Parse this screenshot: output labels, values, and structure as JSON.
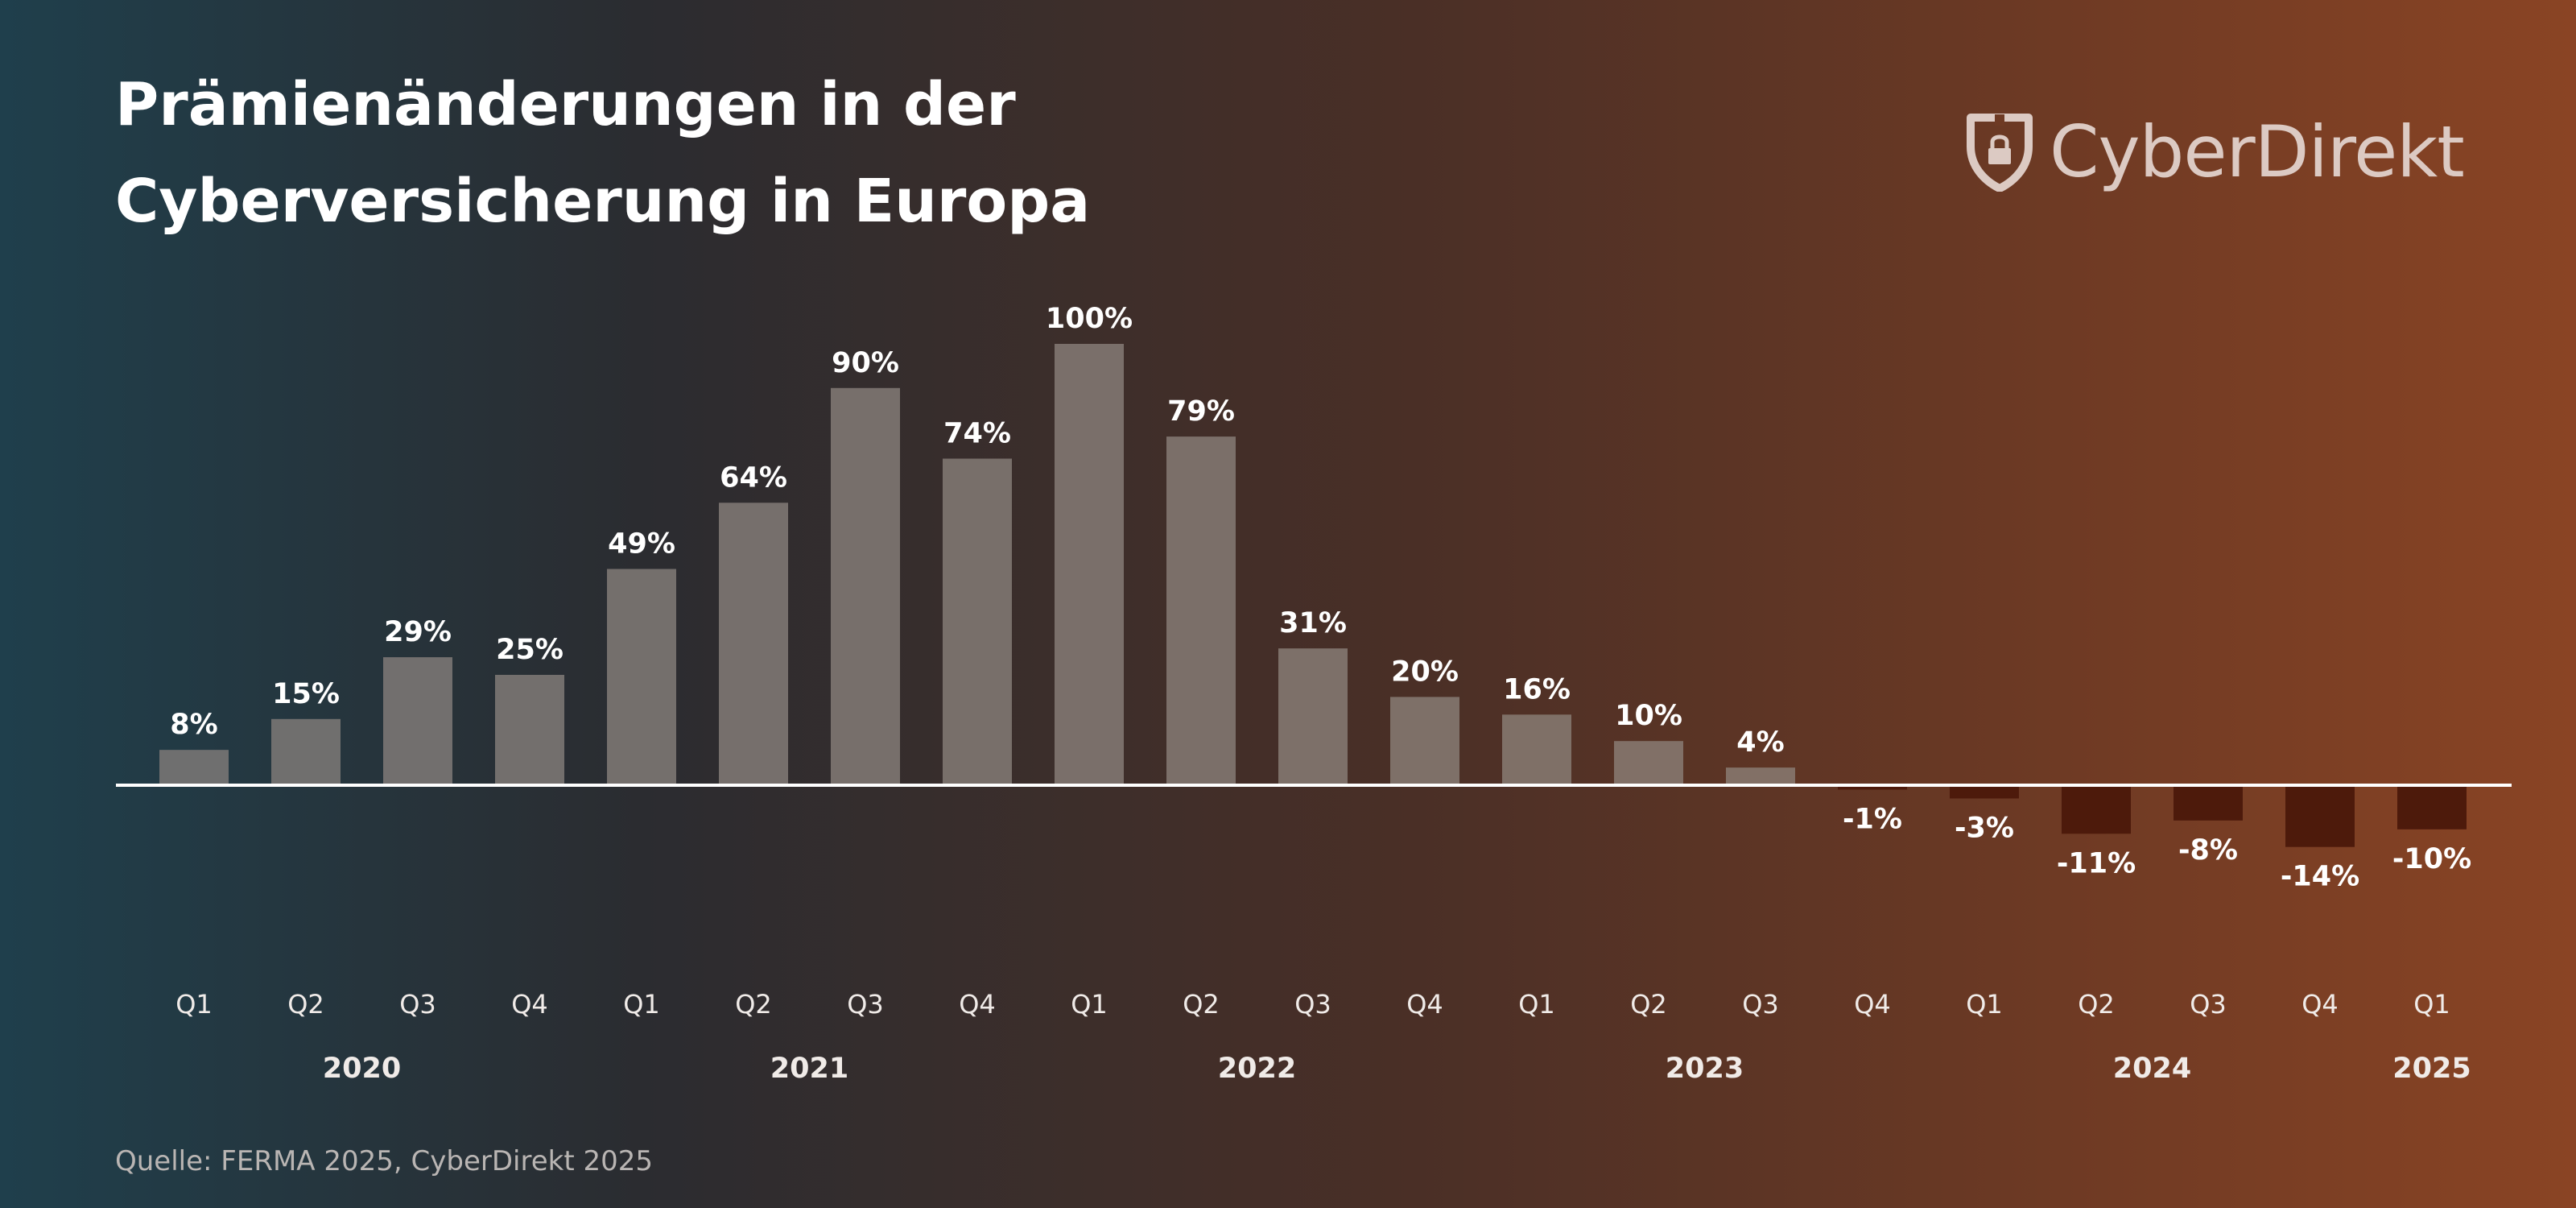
{
  "title_line1": "Prämienänderungen in der",
  "title_line2": "Cyberversicherung in Europa",
  "logo_text": "CyberDirekt",
  "source": "Quelle: FERMA 2025, CyberDirekt 2025",
  "colors": {
    "bar_positive_low": "#6f6f6f",
    "bar_positive_high": "#8a7062",
    "bar_negative": "#4d1a0b",
    "baseline": "#ffffff",
    "logo": "#dccac3"
  },
  "chart_data": {
    "type": "bar",
    "title": "Prämienänderungen in der Cyberversicherung in Europa",
    "categories": [
      "Q1",
      "Q2",
      "Q3",
      "Q4",
      "Q1",
      "Q2",
      "Q3",
      "Q4",
      "Q1",
      "Q2",
      "Q3",
      "Q4",
      "Q1",
      "Q2",
      "Q3",
      "Q4",
      "Q1",
      "Q2",
      "Q3",
      "Q4",
      "Q1"
    ],
    "years": [
      "2020",
      "2020",
      "2020",
      "2020",
      "2021",
      "2021",
      "2021",
      "2021",
      "2022",
      "2022",
      "2022",
      "2022",
      "2023",
      "2023",
      "2023",
      "2023",
      "2024",
      "2024",
      "2024",
      "2024",
      "2025"
    ],
    "year_labels": [
      "2020",
      "2021",
      "2022",
      "2023",
      "2024",
      "2025"
    ],
    "values": [
      8,
      15,
      29,
      25,
      49,
      64,
      90,
      74,
      100,
      79,
      31,
      20,
      16,
      10,
      4,
      -1,
      -3,
      -11,
      -8,
      -14,
      -10
    ],
    "value_labels": [
      "8%",
      "15%",
      "29%",
      "25%",
      "49%",
      "64%",
      "90%",
      "74%",
      "100%",
      "79%",
      "31%",
      "20%",
      "16%",
      "10%",
      "4%",
      "-1%",
      "-3%",
      "-11%",
      "-8%",
      "-14%",
      "-10%"
    ],
    "unit": "%",
    "ylim": [
      -20,
      100
    ],
    "grid": false,
    "legend": "none"
  }
}
